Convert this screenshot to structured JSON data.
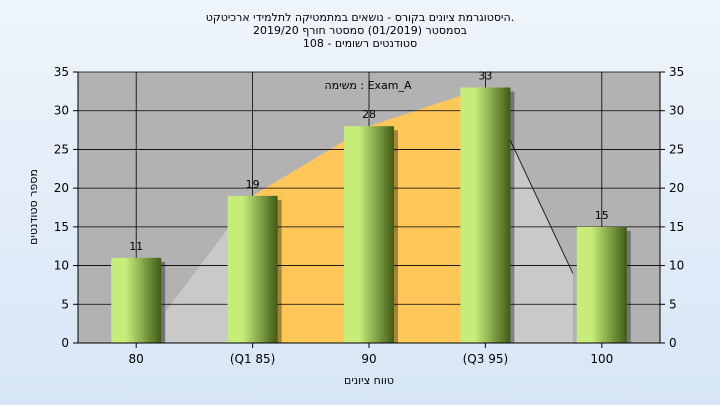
{
  "chart_data": {
    "type": "bar",
    "title_lines": [
      "היסטוגרמת ציונים בקורס - נושאים במתמטיקה לתלמידי ארכיטקט.",
      "בסמסטר  (01/2019)  סמסטר חורף 2019/20",
      "סטודנטים רשומים - 108"
    ],
    "xlabel": "טווח ציונים",
    "ylabel": "מספר סטודנטים",
    "categories": [
      "80",
      "(Q1 85)",
      "90",
      "(Q3 95)",
      "100"
    ],
    "values": [
      11,
      19,
      28,
      33,
      15
    ],
    "ylim": [
      0,
      35
    ],
    "yticks": [
      0,
      5,
      10,
      15,
      20,
      25,
      30,
      35
    ],
    "legend_text": "משימה : Exam_A",
    "grid": true,
    "colors": {
      "plot_bg": "#b2b2b2",
      "band_light": "#c9c9c9",
      "band_iqr": "#ffc65a",
      "bar_light": "#c6ec7a",
      "bar_dark": "#3f5b14"
    }
  }
}
